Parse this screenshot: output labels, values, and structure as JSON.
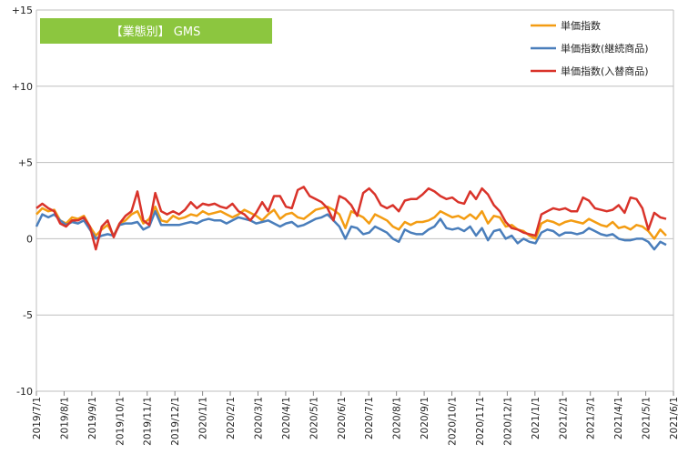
{
  "chart_data": {
    "type": "line",
    "title": "【業態別】 GMS",
    "title_bg": "#8cc63f",
    "xlabel": "",
    "ylabel": "",
    "ylim": [
      -10,
      15
    ],
    "y_ticks": [
      {
        "value": 15,
        "label": "+15"
      },
      {
        "value": 10,
        "label": "+10"
      },
      {
        "value": 5,
        "label": "+5"
      },
      {
        "value": 0,
        "label": "0"
      },
      {
        "value": -5,
        "label": "-5"
      },
      {
        "value": -10,
        "label": "-10"
      }
    ],
    "x_tick_labels": [
      "2019/7/1",
      "2019/8/1",
      "2019/9/1",
      "2019/10/1",
      "2019/11/1",
      "2019/12/1",
      "2020/1/1",
      "2020/2/1",
      "2020/3/1",
      "2020/4/1",
      "2020/5/1",
      "2020/6/1",
      "2020/7/1",
      "2020/8/1",
      "2020/9/1",
      "2020/10/1",
      "2020/11/1",
      "2020/12/1",
      "2021/1/1",
      "2021/2/1",
      "2021/3/1",
      "2021/4/1",
      "2021/5/1",
      "2021/6/1"
    ],
    "grid": true,
    "legend_position": "top-right",
    "series": [
      {
        "name": "単価指数",
        "color": "#f39c12",
        "values": [
          1.6,
          2.0,
          1.8,
          1.9,
          1.2,
          1.0,
          1.4,
          1.3,
          1.5,
          0.8,
          0.2,
          0.6,
          0.9,
          0.2,
          1.0,
          1.2,
          1.6,
          1.8,
          1.0,
          1.3,
          2.1,
          1.2,
          1.1,
          1.5,
          1.3,
          1.4,
          1.6,
          1.5,
          1.8,
          1.6,
          1.7,
          1.8,
          1.6,
          1.4,
          1.6,
          1.9,
          1.7,
          1.5,
          1.2,
          1.6,
          1.9,
          1.3,
          1.6,
          1.7,
          1.4,
          1.3,
          1.6,
          1.9,
          2.0,
          2.1,
          1.9,
          1.6,
          0.7,
          1.8,
          1.6,
          1.4,
          1.0,
          1.6,
          1.4,
          1.2,
          0.8,
          0.6,
          1.1,
          0.9,
          1.1,
          1.1,
          1.2,
          1.4,
          1.8,
          1.6,
          1.4,
          1.5,
          1.3,
          1.6,
          1.3,
          1.8,
          1.0,
          1.5,
          1.4,
          0.8,
          0.9,
          0.6,
          0.5,
          0.2,
          0.0,
          1.0,
          1.2,
          1.1,
          0.9,
          1.1,
          1.2,
          1.1,
          1.0,
          1.3,
          1.1,
          0.9,
          0.8,
          1.1,
          0.7,
          0.8,
          0.6,
          0.9,
          0.8,
          0.5,
          0.0,
          0.6,
          0.2
        ],
        "width": 2.5
      },
      {
        "name": "単価指数(継続商品)",
        "color": "#4a7ebb",
        "values": [
          0.8,
          1.6,
          1.4,
          1.6,
          1.2,
          0.9,
          1.1,
          1.0,
          1.2,
          0.6,
          0.0,
          0.2,
          0.3,
          0.2,
          0.9,
          1.0,
          1.0,
          1.1,
          0.6,
          0.8,
          1.8,
          0.9,
          0.9,
          0.9,
          0.9,
          1.0,
          1.1,
          1.0,
          1.2,
          1.3,
          1.2,
          1.2,
          1.0,
          1.2,
          1.4,
          1.3,
          1.2,
          1.0,
          1.1,
          1.2,
          1.0,
          0.8,
          1.0,
          1.1,
          0.8,
          0.9,
          1.1,
          1.3,
          1.4,
          1.6,
          1.2,
          0.8,
          0.0,
          0.8,
          0.7,
          0.3,
          0.4,
          0.8,
          0.6,
          0.4,
          0.0,
          -0.2,
          0.6,
          0.4,
          0.3,
          0.3,
          0.6,
          0.8,
          1.3,
          0.7,
          0.6,
          0.7,
          0.5,
          0.8,
          0.2,
          0.7,
          -0.1,
          0.5,
          0.6,
          0.0,
          0.2,
          -0.3,
          0.0,
          -0.2,
          -0.3,
          0.4,
          0.6,
          0.5,
          0.2,
          0.4,
          0.4,
          0.3,
          0.4,
          0.7,
          0.5,
          0.3,
          0.2,
          0.3,
          0.0,
          -0.1,
          -0.1,
          0.0,
          0.0,
          -0.2,
          -0.7,
          -0.2,
          -0.4
        ],
        "width": 2.5
      },
      {
        "name": "単価指数(入替商品)",
        "color": "#d9332a",
        "values": [
          2.0,
          2.3,
          2.0,
          1.8,
          1.0,
          0.8,
          1.2,
          1.2,
          1.4,
          0.8,
          -0.7,
          0.8,
          1.2,
          0.1,
          1.0,
          1.5,
          1.8,
          3.1,
          1.2,
          0.9,
          3.0,
          1.8,
          1.6,
          1.8,
          1.6,
          1.9,
          2.4,
          2.0,
          2.3,
          2.2,
          2.3,
          2.1,
          2.0,
          2.3,
          1.8,
          1.6,
          1.2,
          1.7,
          2.4,
          1.8,
          2.8,
          2.8,
          2.1,
          2.0,
          3.2,
          3.4,
          2.8,
          2.6,
          2.4,
          2.0,
          1.2,
          2.8,
          2.6,
          2.2,
          1.5,
          3.0,
          3.3,
          2.9,
          2.2,
          2.0,
          2.2,
          1.8,
          2.5,
          2.6,
          2.6,
          2.9,
          3.3,
          3.1,
          2.8,
          2.6,
          2.7,
          2.4,
          2.3,
          3.1,
          2.6,
          3.3,
          2.9,
          2.2,
          1.8,
          1.1,
          0.7,
          0.6,
          0.4,
          0.3,
          0.2,
          1.6,
          1.8,
          2.0,
          1.9,
          2.0,
          1.8,
          1.8,
          2.7,
          2.5,
          2.0,
          1.9,
          1.8,
          1.9,
          2.2,
          1.7,
          2.7,
          2.6,
          2.0,
          0.6,
          1.7,
          1.4,
          1.3
        ],
        "width": 2.5
      }
    ]
  }
}
